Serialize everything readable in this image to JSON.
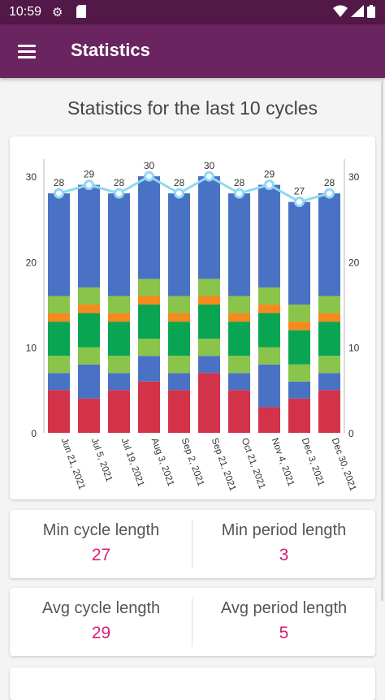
{
  "status_bar": {
    "time": "10:59"
  },
  "app_bar": {
    "title": "Statistics"
  },
  "heading": "Statistics for the last 10 cycles",
  "colors": {
    "red": "#d23349",
    "blue": "#4a72c4",
    "lightgreen": "#8bc44a",
    "green": "#0aa552",
    "orange": "#f58a1f",
    "line": "#8fd8f4"
  },
  "chart_data": {
    "type": "bar",
    "stacked": true,
    "categories": [
      "Jun 21, 2021",
      "Jul 5, 2021",
      "Jul 19, 2021",
      "Aug 3, 2021",
      "Sep 2, 2021",
      "Sep 21, 2021",
      "Oct 21, 2021",
      "Nov 4, 2021",
      "Dec 3, 2021",
      "Dec 30, 2021"
    ],
    "segments": [
      {
        "color": "red",
        "values": [
          5,
          4,
          5,
          6,
          5,
          7,
          5,
          3,
          4,
          5
        ]
      },
      {
        "color": "blue",
        "values": [
          2,
          4,
          2,
          3,
          2,
          2,
          2,
          5,
          2,
          2
        ]
      },
      {
        "color": "lightgreen",
        "values": [
          2,
          2,
          2,
          2,
          2,
          2,
          2,
          2,
          2,
          2
        ]
      },
      {
        "color": "green",
        "values": [
          4,
          4,
          4,
          4,
          4,
          4,
          4,
          4,
          4,
          4
        ]
      },
      {
        "color": "orange",
        "values": [
          1,
          1,
          1,
          1,
          1,
          1,
          1,
          1,
          1,
          1
        ]
      },
      {
        "color": "lightgreen",
        "values": [
          2,
          2,
          2,
          2,
          2,
          2,
          2,
          2,
          2,
          2
        ]
      },
      {
        "color": "blue",
        "values": [
          12,
          12,
          12,
          12,
          12,
          12,
          12,
          12,
          12,
          12
        ]
      }
    ],
    "line": {
      "values": [
        28,
        29,
        28,
        30,
        28,
        30,
        28,
        29,
        27,
        28
      ]
    },
    "ylim": [
      0,
      32
    ],
    "yticks": [
      0,
      10,
      20,
      30
    ]
  },
  "stats": [
    {
      "left_label": "Min cycle length",
      "left_value": "27",
      "right_label": "Min period length",
      "right_value": "3"
    },
    {
      "left_label": "Avg cycle length",
      "left_value": "29",
      "right_label": "Avg period length",
      "right_value": "5"
    }
  ]
}
